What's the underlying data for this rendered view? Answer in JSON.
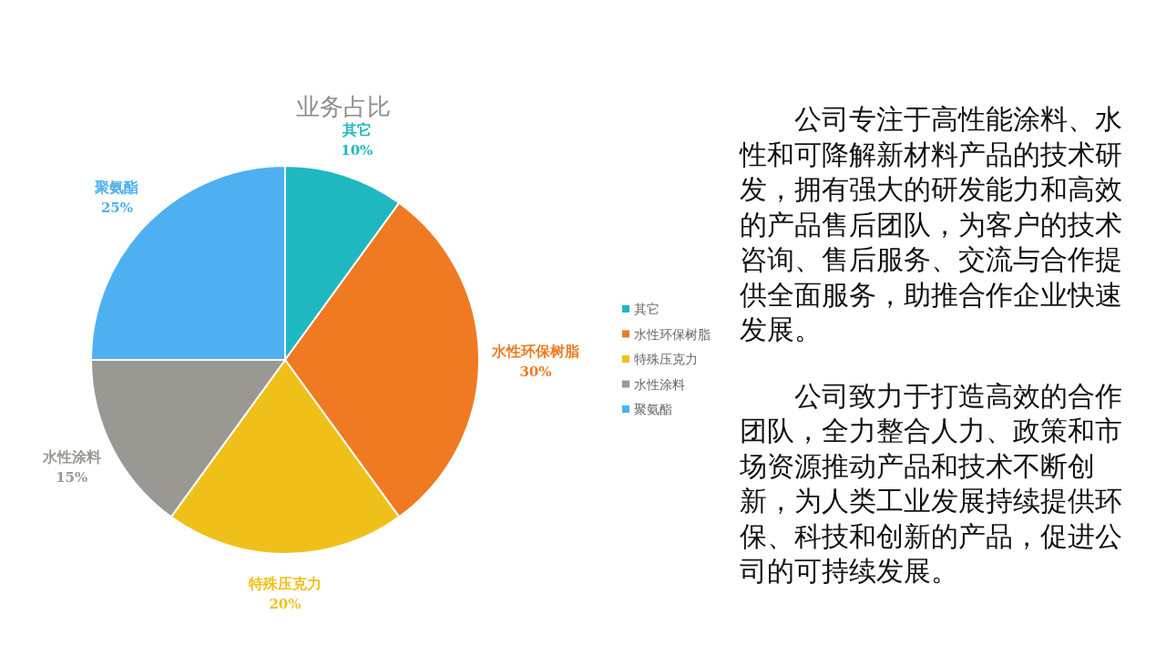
{
  "chart_data": [
    {
      "type": "pie",
      "title": "业务占比",
      "categories": [
        "其它",
        "水性环保树脂",
        "特殊压克力",
        "水性涂料",
        "聚氨酯"
      ],
      "values": [
        10,
        30,
        20,
        15,
        25
      ],
      "colors": [
        "#1fb8c1",
        "#ef7a22",
        "#f0c01a",
        "#999893",
        "#4eb0f0"
      ],
      "value_labels": [
        "10%",
        "30%",
        "20%",
        "15%",
        "25%"
      ],
      "legend": "right"
    },
    {
      "type": "other",
      "annotations": [
        "公司专注于高性能涂料、水性和可降解新材料产品的技术研发，拥有强大的研发能力和高效的产品售后团队，为客户的技术咨询、售后服务、交流与合作提供全面服务，助推合作企业快速发展。",
        "公司致力于打造高效的合作团队，全力整合人力、政策和市场资源推动产品和技术不断创新，为人类工业发展持续提供环保、科技和创新的产品，促进公司的可持续发展。"
      ]
    }
  ]
}
